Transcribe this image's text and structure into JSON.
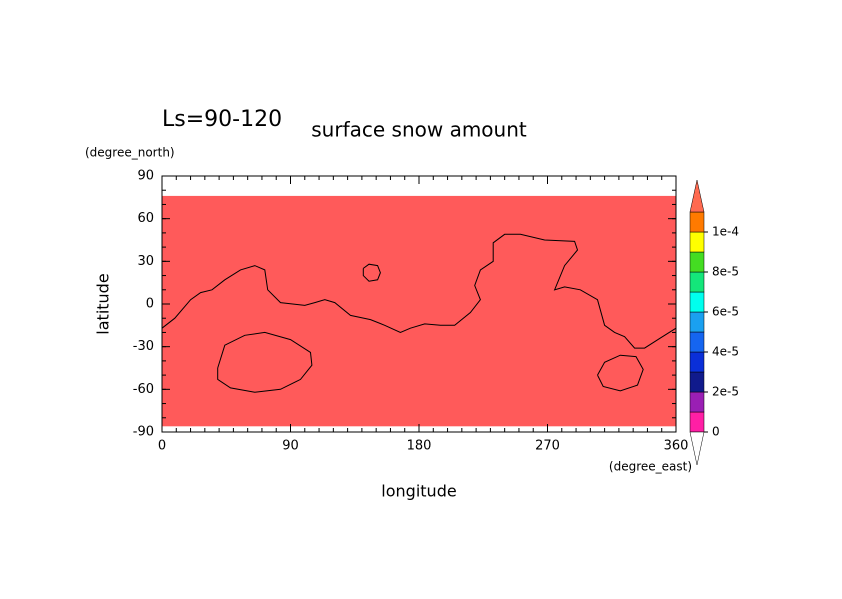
{
  "chart_data": {
    "type": "contour",
    "title": "surface snow amount",
    "subtitle": "Ls=90-120",
    "xlabel": "longitude",
    "ylabel": "latitude",
    "xunit": "(degree_east)",
    "yunit": "(degree_north)",
    "xlim": [
      0,
      360
    ],
    "ylim": [
      -90,
      90
    ],
    "xticks": [
      0,
      90,
      180,
      270,
      360
    ],
    "yticks": [
      90,
      60,
      30,
      0,
      -30,
      -60,
      -90
    ],
    "xminorticks": [
      0,
      10,
      20,
      30,
      40,
      50,
      60,
      70,
      80,
      90,
      100,
      110,
      120,
      130,
      140,
      150,
      160,
      170,
      180,
      190,
      200,
      210,
      220,
      230,
      240,
      250,
      260,
      270,
      280,
      290,
      300,
      310,
      320,
      330,
      340,
      350,
      360
    ],
    "yminorticks": [
      -90,
      -80,
      -70,
      -60,
      -50,
      -40,
      -30,
      -20,
      -10,
      0,
      10,
      20,
      30,
      40,
      50,
      60,
      70,
      80,
      90
    ],
    "fill": {
      "x": [
        0,
        360
      ],
      "y": [
        -86,
        76
      ],
      "color": "#ff5a5a"
    },
    "contours": [
      {
        "x": [
          0,
          9,
          20,
          27,
          35,
          44,
          55,
          65,
          72,
          74,
          83,
          100,
          107,
          114,
          121,
          132,
          146,
          156,
          167,
          174,
          184,
          195,
          205,
          216,
          223,
          219,
          223,
          232,
          232,
          240,
          251,
          268,
          289,
          291,
          282,
          275,
          282,
          293,
          305,
          310,
          317,
          324,
          331,
          338,
          349,
          360
        ],
        "y": [
          -17,
          -10,
          3,
          8,
          10,
          17,
          24,
          27,
          24,
          10,
          1,
          -1,
          1,
          3,
          1,
          -8,
          -11,
          -15,
          -20,
          -17,
          -14,
          -15,
          -15,
          -6,
          3,
          13,
          24,
          30,
          43,
          49,
          49,
          45,
          44,
          38,
          27,
          10,
          12,
          10,
          3,
          -15,
          -20,
          -23,
          -31,
          -31,
          -24,
          -17
        ]
      },
      {
        "x": [
          141,
          145,
          151,
          153,
          151,
          145,
          141,
          141
        ],
        "y": [
          25,
          28,
          27,
          22,
          17,
          16,
          20,
          25
        ]
      },
      {
        "x": [
          39,
          44,
          58,
          72,
          90,
          104,
          105,
          97,
          83,
          65,
          48,
          39,
          39
        ],
        "y": [
          -45,
          -29,
          -22,
          -20,
          -25,
          -34,
          -43,
          -53,
          -60,
          -62,
          -59,
          -53,
          -45
        ]
      },
      {
        "x": [
          305,
          310,
          321,
          332,
          337,
          333,
          321,
          309,
          305
        ],
        "y": [
          -50,
          -41,
          -36,
          -37,
          -46,
          -57,
          -61,
          -58,
          -50
        ]
      }
    ],
    "colorbar": {
      "levels": [
        0,
        1e-05,
        2e-05,
        3e-05,
        4e-05,
        5e-05,
        6e-05,
        7e-05,
        8e-05,
        9e-05,
        0.0001,
        0.00011
      ],
      "colors": [
        "#ff1fa5",
        "#9a1fb4",
        "#101a8c",
        "#0a2fd8",
        "#1565f0",
        "#1aa0f0",
        "#00ffee",
        "#14e67a",
        "#44dd22",
        "#ffff00",
        "#ff7a00"
      ],
      "extend_max_color": "#ff6a50",
      "extend_min_color": "#ffffff",
      "ticks": [
        0,
        {
          "value": 2e-05,
          "label": "2e-5"
        },
        {
          "value": 4e-05,
          "label": "4e-5"
        },
        {
          "value": 6e-05,
          "label": "6e-5"
        },
        {
          "value": 8e-05,
          "label": "8e-5"
        },
        {
          "value": 0.0001,
          "label": "1e-4"
        }
      ]
    }
  }
}
